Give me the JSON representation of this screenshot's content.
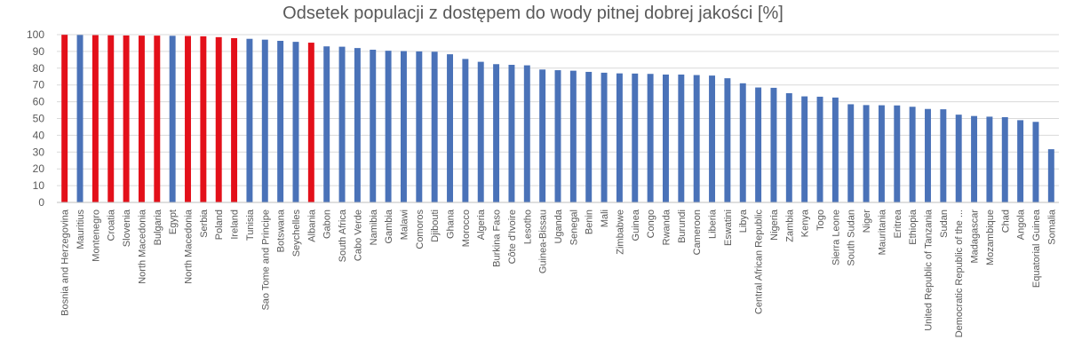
{
  "chart_data": {
    "type": "bar",
    "title": "Odsetek populacji z dostępem do wody pitnej dobrej jakości [%]",
    "xlabel": "",
    "ylabel": "",
    "ylim": [
      0,
      100
    ],
    "yticks": [
      0,
      10,
      20,
      30,
      40,
      50,
      60,
      70,
      80,
      90,
      100
    ],
    "grid": true,
    "legend": "none",
    "colors": {
      "highlight": "#e3101a",
      "default": "#4a72b8",
      "grid": "#d9d9d9",
      "axis": "#bfbfbf"
    },
    "categories": [
      "Bosnia and Herzegovina",
      "Mauritius",
      "Montenegro",
      "Croatia",
      "Slovenia",
      "North Macedonia",
      "Bulgaria",
      "Egypt",
      "North Macedonia",
      "Serbia",
      "Poland",
      "Ireland",
      "Tunisia",
      "Sao Tome and Principe",
      "Botswana",
      "Seychelles",
      "Albania",
      "Gabon",
      "South Africa",
      "Cabo Verde",
      "Namibia",
      "Gambia",
      "Malawi",
      "Comoros",
      "Djibouti",
      "Ghana",
      "Morocco",
      "Algeria",
      "Burkina Faso",
      "Côte d'Ivoire",
      "Lesotho",
      "Guinea-Bissau",
      "Uganda",
      "Senegal",
      "Benin",
      "Mali",
      "Zimbabwe",
      "Guinea",
      "Congo",
      "Rwanda",
      "Burundi",
      "Cameroon",
      "Liberia",
      "Eswatini",
      "Libya",
      "Central African Republic",
      "Nigeria",
      "Zambia",
      "Kenya",
      "Togo",
      "Sierra Leone",
      "South Sudan",
      "Niger",
      "Mauritania",
      "Eritrea",
      "Ethiopia",
      "United Republic of Tanzania",
      "Sudan",
      "Democratic Republic of the ...",
      "Madagascar",
      "Mozambique",
      "Chad",
      "Angola",
      "Equatorial Guinea",
      "Somalia"
    ],
    "values": [
      99.9,
      99.8,
      99.7,
      99.6,
      99.5,
      99.4,
      99.4,
      99.3,
      99.2,
      99.0,
      98.5,
      97.9,
      97.5,
      97.0,
      96.3,
      95.7,
      95.2,
      93.0,
      92.8,
      92.0,
      91.0,
      90.4,
      90.2,
      90.0,
      89.8,
      88.3,
      85.5,
      83.8,
      82.4,
      82.0,
      81.7,
      79.2,
      78.8,
      78.5,
      77.8,
      77.3,
      76.9,
      76.8,
      76.6,
      76.2,
      76.2,
      75.9,
      75.6,
      74.0,
      71.0,
      68.5,
      68.3,
      65.1,
      63.2,
      63.0,
      62.5,
      58.5,
      58.0,
      57.9,
      57.8,
      57.0,
      55.7,
      55.5,
      52.3,
      51.5,
      51.1,
      50.8,
      49.0,
      48.0,
      31.7
    ],
    "highlighted": [
      "Bosnia and Herzegovina",
      "Montenegro",
      "Croatia",
      "Slovenia",
      "North Macedonia",
      "Bulgaria",
      "North Macedonia",
      "Serbia",
      "Poland",
      "Ireland",
      "Albania"
    ]
  }
}
